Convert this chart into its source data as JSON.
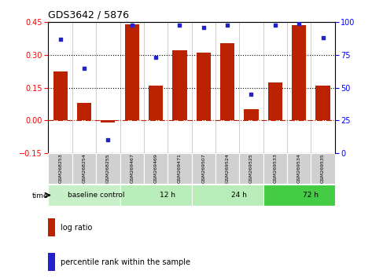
{
  "title": "GDS3642 / 5876",
  "samples": [
    "GSM268253",
    "GSM268254",
    "GSM268255",
    "GSM269467",
    "GSM269469",
    "GSM269471",
    "GSM269507",
    "GSM269524",
    "GSM269525",
    "GSM269533",
    "GSM269534",
    "GSM269535"
  ],
  "log_ratio": [
    0.225,
    0.08,
    -0.01,
    0.44,
    0.16,
    0.32,
    0.31,
    0.355,
    0.05,
    0.175,
    0.435,
    0.16
  ],
  "percentile_rank": [
    87,
    65,
    10,
    98,
    73,
    98,
    96,
    98,
    45,
    98,
    99,
    88
  ],
  "bar_color": "#bb2200",
  "dot_color": "#2222cc",
  "ylim_left": [
    -0.15,
    0.45
  ],
  "ylim_right": [
    0,
    100
  ],
  "yticks_left": [
    -0.15,
    0,
    0.15,
    0.3,
    0.45
  ],
  "yticks_right": [
    0,
    25,
    50,
    75,
    100
  ],
  "hlines": [
    0.15,
    0.3
  ],
  "group_defs": [
    {
      "start": 0,
      "end": 3,
      "label": "baseline control",
      "color": "#c8f0c8"
    },
    {
      "start": 3,
      "end": 6,
      "label": "12 h",
      "color": "#b8ecb8"
    },
    {
      "start": 6,
      "end": 9,
      "label": "24 h",
      "color": "#b8ecb8"
    },
    {
      "start": 9,
      "end": 12,
      "label": "72 h",
      "color": "#44cc44"
    }
  ],
  "sample_box_color": "#d0d0d0",
  "zero_line_color": "#bb2200",
  "legend_bar_color": "#bb2200",
  "legend_dot_color": "#2222cc"
}
